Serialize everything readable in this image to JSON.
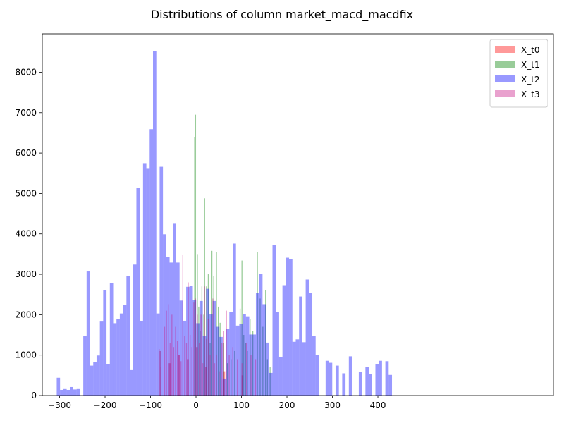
{
  "chart_data": {
    "type": "bar",
    "title": "Distributions of column market_macd_macdfix",
    "xlabel": "",
    "ylabel": "",
    "xlim": [
      -338,
      786
    ],
    "ylim": [
      0,
      8950
    ],
    "x_ticks": [
      -300,
      -200,
      -100,
      0,
      100,
      200,
      300,
      400
    ],
    "y_ticks": [
      0,
      1000,
      2000,
      3000,
      4000,
      5000,
      6000,
      7000,
      8000
    ],
    "legend_position": "top-right",
    "grid": false,
    "series": [
      {
        "name": "X_t0",
        "color": "#ff0000",
        "alpha": 0.4,
        "bin_width": 4,
        "bins": [
          [
            -80,
            1100
          ],
          [
            -60,
            800
          ],
          [
            -40,
            1000
          ],
          [
            -20,
            900
          ],
          [
            0,
            1200
          ],
          [
            20,
            700
          ],
          [
            60,
            600
          ],
          [
            100,
            500
          ]
        ]
      },
      {
        "name": "X_t1",
        "color": "#008000",
        "alpha": 0.4,
        "bin_width": 2,
        "bins": [
          [
            -4,
            6400
          ],
          [
            -2,
            6950
          ],
          [
            2,
            3500
          ],
          [
            5,
            2200
          ],
          [
            8,
            1600
          ],
          [
            12,
            2700
          ],
          [
            16,
            2000
          ],
          [
            18,
            4880
          ],
          [
            22,
            2700
          ],
          [
            26,
            3000
          ],
          [
            30,
            1300
          ],
          [
            34,
            3580
          ],
          [
            38,
            2950
          ],
          [
            44,
            3550
          ],
          [
            48,
            2200
          ],
          [
            52,
            1800
          ],
          [
            60,
            1300
          ],
          [
            68,
            800
          ],
          [
            76,
            900
          ],
          [
            84,
            1100
          ],
          [
            96,
            2150
          ],
          [
            100,
            3340
          ],
          [
            104,
            1500
          ],
          [
            108,
            1300
          ],
          [
            112,
            1100
          ],
          [
            118,
            1900
          ],
          [
            124,
            1600
          ],
          [
            134,
            3550
          ],
          [
            140,
            2400
          ],
          [
            146,
            1700
          ],
          [
            152,
            2600
          ],
          [
            156,
            900
          ],
          [
            162,
            700
          ]
        ]
      },
      {
        "name": "X_t2",
        "color": "#0000ff",
        "alpha": 0.4,
        "bin_width": 7.3,
        "bins": [
          [
            -306.3,
            440
          ],
          [
            -299,
            140
          ],
          [
            -291.7,
            160
          ],
          [
            -284.4,
            140
          ],
          [
            -277.1,
            210
          ],
          [
            -269.8,
            150
          ],
          [
            -262.5,
            160
          ],
          [
            -255.2,
            0
          ],
          [
            -247.9,
            1470
          ],
          [
            -240.6,
            3070
          ],
          [
            -233.3,
            740
          ],
          [
            -226,
            820
          ],
          [
            -218.7,
            990
          ],
          [
            -211.4,
            1830
          ],
          [
            -204.1,
            2600
          ],
          [
            -196.8,
            780
          ],
          [
            -189.5,
            2790
          ],
          [
            -182.2,
            1790
          ],
          [
            -174.9,
            1890
          ],
          [
            -167.6,
            2030
          ],
          [
            -160.3,
            2250
          ],
          [
            -153,
            2960
          ],
          [
            -145.7,
            630
          ],
          [
            -138.4,
            3240
          ],
          [
            -131.1,
            5130
          ],
          [
            -123.8,
            1850
          ],
          [
            -116.5,
            5750
          ],
          [
            -109.2,
            5610
          ],
          [
            -101.9,
            6590
          ],
          [
            -94.6,
            8520
          ],
          [
            -87.3,
            2030
          ],
          [
            -80,
            5660
          ],
          [
            -72.7,
            3990
          ],
          [
            -65.4,
            3420
          ],
          [
            -58.1,
            3290
          ],
          [
            -50.8,
            4250
          ],
          [
            -43.5,
            3290
          ],
          [
            -36.2,
            2350
          ],
          [
            -28.9,
            1850
          ],
          [
            -21.6,
            2690
          ],
          [
            -14.3,
            2710
          ],
          [
            -7,
            2360
          ],
          [
            0.3,
            1790
          ],
          [
            7.6,
            2340
          ],
          [
            14.9,
            1480
          ],
          [
            22.2,
            2640
          ],
          [
            29.5,
            2010
          ],
          [
            36.8,
            2340
          ],
          [
            44.1,
            1700
          ],
          [
            51.4,
            1450
          ],
          [
            58.7,
            420
          ],
          [
            66,
            1650
          ],
          [
            73.3,
            2070
          ],
          [
            80.6,
            3760
          ],
          [
            87.9,
            1730
          ],
          [
            95.2,
            1780
          ],
          [
            102.5,
            2010
          ],
          [
            109.8,
            1960
          ],
          [
            117.1,
            1510
          ],
          [
            124.4,
            1510
          ],
          [
            131.7,
            2530
          ],
          [
            139,
            3010
          ],
          [
            146.3,
            2260
          ],
          [
            153.6,
            1310
          ],
          [
            160.9,
            560
          ],
          [
            168.2,
            3720
          ],
          [
            175.5,
            2070
          ],
          [
            182.8,
            960
          ],
          [
            190.1,
            2730
          ],
          [
            197.4,
            3410
          ],
          [
            204.7,
            3370
          ],
          [
            212,
            1330
          ],
          [
            219.3,
            1390
          ],
          [
            226.6,
            2450
          ],
          [
            233.9,
            1320
          ],
          [
            241.2,
            2870
          ],
          [
            248.5,
            2530
          ],
          [
            255.8,
            1480
          ],
          [
            263.1,
            1000
          ],
          [
            270.4,
            0
          ],
          [
            277.7,
            0
          ],
          [
            285,
            860
          ],
          [
            292.3,
            810
          ],
          [
            299.6,
            0
          ],
          [
            306.9,
            740
          ],
          [
            314.2,
            0
          ],
          [
            321.5,
            550
          ],
          [
            328.8,
            0
          ],
          [
            336.1,
            970
          ],
          [
            343.4,
            0
          ],
          [
            350.7,
            0
          ],
          [
            358,
            590
          ],
          [
            365.3,
            0
          ],
          [
            372.6,
            710
          ],
          [
            379.9,
            540
          ],
          [
            387.2,
            0
          ],
          [
            394.5,
            770
          ],
          [
            401.8,
            860
          ],
          [
            409.1,
            0
          ],
          [
            416.4,
            850
          ],
          [
            423.7,
            510
          ]
        ]
      },
      {
        "name": "X_t3",
        "color": "#c71585",
        "alpha": 0.4,
        "bin_width": 2,
        "bins": [
          [
            -82,
            1150
          ],
          [
            -78,
            700
          ],
          [
            -70,
            1700
          ],
          [
            -66,
            2100
          ],
          [
            -62,
            2260
          ],
          [
            -58,
            1300
          ],
          [
            -54,
            2000
          ],
          [
            -50,
            1200
          ],
          [
            -46,
            1700
          ],
          [
            -42,
            1350
          ],
          [
            -38,
            1000
          ],
          [
            -34,
            850
          ],
          [
            -30,
            3490
          ],
          [
            -26,
            1480
          ],
          [
            -22,
            1300
          ],
          [
            -18,
            2800
          ],
          [
            -14,
            1500
          ],
          [
            -10,
            1200
          ],
          [
            -6,
            2300
          ],
          [
            -2,
            2400
          ],
          [
            2,
            2000
          ],
          [
            6,
            1300
          ],
          [
            10,
            2000
          ],
          [
            14,
            800
          ],
          [
            18,
            2700
          ],
          [
            22,
            1400
          ],
          [
            26,
            1900
          ],
          [
            30,
            1000
          ],
          [
            36,
            2400
          ],
          [
            40,
            800
          ],
          [
            44,
            1000
          ],
          [
            50,
            600
          ],
          [
            56,
            1300
          ],
          [
            60,
            1600
          ],
          [
            66,
            2100
          ],
          [
            72,
            1000
          ],
          [
            80,
            1200
          ],
          [
            90,
            900
          ],
          [
            100,
            800
          ],
          [
            110,
            1300
          ],
          [
            120,
            1000
          ],
          [
            130,
            900
          ]
        ]
      }
    ]
  }
}
